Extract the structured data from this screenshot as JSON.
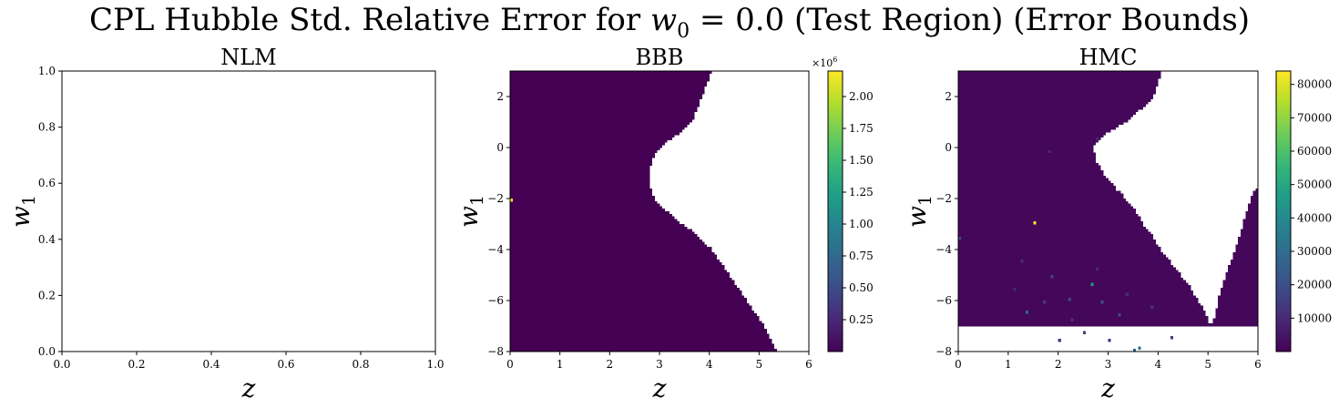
{
  "figure": {
    "title_prefix": "CPL Hubble Std. Relative Error for ",
    "title_math_var": "w",
    "title_math_sub": "0",
    "title_math_rest": " = 0.0",
    "title_suffix": " (Test Region) (Error Bounds)"
  },
  "colors": {
    "viridis_low": "#440154",
    "viridis_high": "#fde725",
    "background": "#ffffff"
  },
  "chart_data": [
    {
      "type": "heatmap",
      "title": "NLM",
      "xlabel": "z",
      "ylabel": "w",
      "ylabel_sub": "1",
      "xlim": [
        0.0,
        1.0
      ],
      "ylim": [
        0.0,
        1.0
      ],
      "xticks": [
        0.0,
        0.2,
        0.4,
        0.6,
        0.8,
        1.0
      ],
      "xtick_labels": [
        "0.0",
        "0.2",
        "0.4",
        "0.6",
        "0.8",
        "1.0"
      ],
      "yticks": [
        0.0,
        0.2,
        0.4,
        0.6,
        0.8,
        1.0
      ],
      "ytick_labels": [
        "0.0",
        "0.2",
        "0.4",
        "0.6",
        "0.8",
        "1.0"
      ],
      "empty": true,
      "colorbar": null
    },
    {
      "type": "heatmap",
      "title": "BBB",
      "xlabel": "z",
      "ylabel": "w",
      "ylabel_sub": "1",
      "xlim": [
        0,
        6
      ],
      "ylim": [
        -8,
        3
      ],
      "xticks": [
        0,
        1,
        2,
        3,
        4,
        5,
        6
      ],
      "xtick_labels": [
        "0",
        "1",
        "2",
        "3",
        "4",
        "5",
        "6"
      ],
      "yticks": [
        2,
        0,
        -2,
        -4,
        -6,
        -8
      ],
      "ytick_labels": [
        "2",
        "0",
        "−2",
        "−4",
        "−6",
        "−8"
      ],
      "grid": {
        "nx": 120,
        "ny": 110
      },
      "valid_region_boundary": {
        "w1": [
          3.0,
          2.0,
          1.0,
          0.5,
          0.0,
          -0.5,
          -1.0,
          -1.5,
          -2.0,
          -2.5,
          -3.0,
          -3.5,
          -4.0,
          -5.0,
          -6.0,
          -7.0,
          -8.0
        ],
        "z_max": [
          4.05,
          3.85,
          3.65,
          3.35,
          3.0,
          2.85,
          2.78,
          2.8,
          2.9,
          3.15,
          3.45,
          3.8,
          4.05,
          4.4,
          4.75,
          5.1,
          5.35
        ]
      },
      "base_value": 0,
      "hotspots": [
        {
          "z": 0.0,
          "w1": -2.1,
          "value": 2150000
        }
      ],
      "colorbar": {
        "min": 0,
        "max": 2200000,
        "offset_label": "×10",
        "offset_exp": "6",
        "ticks": [
          250000,
          500000,
          750000,
          1000000,
          1250000,
          1500000,
          1750000,
          2000000
        ],
        "tick_labels": [
          "0.25",
          "0.50",
          "0.75",
          "1.00",
          "1.25",
          "1.50",
          "1.75",
          "2.00"
        ]
      }
    },
    {
      "type": "heatmap",
      "title": "HMC",
      "xlabel": "z",
      "ylabel": "w",
      "ylabel_sub": "1",
      "xlim": [
        0,
        6
      ],
      "ylim": [
        -8,
        3
      ],
      "xticks": [
        0,
        1,
        2,
        3,
        4,
        5,
        6
      ],
      "xtick_labels": [
        "0",
        "1",
        "2",
        "3",
        "4",
        "5",
        "6"
      ],
      "yticks": [
        2,
        0,
        -2,
        -4,
        -6,
        -8
      ],
      "ytick_labels": [
        "2",
        "0",
        "−2",
        "−4",
        "−6",
        "−8"
      ],
      "grid": {
        "nx": 120,
        "ny": 110
      },
      "left_boundary": {
        "w1": [
          3.0,
          2.5,
          2.0,
          1.5,
          1.0,
          0.5,
          0.0,
          -0.5,
          -1.0,
          -1.5,
          -2.0,
          -2.5,
          -3.0,
          -3.5,
          -4.0,
          -4.5,
          -5.0,
          -5.5,
          -6.0,
          -6.5,
          -6.8,
          -7.0
        ],
        "z_max": [
          4.05,
          4.0,
          3.9,
          3.65,
          3.35,
          2.9,
          2.7,
          2.75,
          2.9,
          3.1,
          3.35,
          3.55,
          3.7,
          3.9,
          4.05,
          4.25,
          4.45,
          4.65,
          4.8,
          4.95,
          5.0,
          5.05
        ]
      },
      "right_boundary": {
        "w1": [
          -7.0,
          -6.8,
          -6.5,
          -6.0,
          -5.0,
          -4.5,
          -4.0,
          -3.0,
          -2.0,
          -1.5
        ],
        "z_min": [
          5.05,
          5.1,
          5.15,
          5.2,
          5.35,
          5.45,
          5.55,
          5.7,
          5.85,
          6.0
        ]
      },
      "base_value": 1500,
      "hotspots": [
        {
          "z": 1.52,
          "w1": -3.0,
          "value": 83000
        },
        {
          "z": 2.67,
          "w1": -5.35,
          "value": 45000
        },
        {
          "z": 1.4,
          "w1": -6.45,
          "value": 30000
        },
        {
          "z": 3.6,
          "w1": -7.85,
          "value": 32000
        },
        {
          "z": 2.9,
          "w1": -6.1,
          "value": 22000
        },
        {
          "z": 1.9,
          "w1": -5.1,
          "value": 18000
        },
        {
          "z": 2.2,
          "w1": -5.9,
          "value": 16000
        },
        {
          "z": 3.2,
          "w1": -6.6,
          "value": 20000
        },
        {
          "z": 2.5,
          "w1": -7.3,
          "value": 15000
        },
        {
          "z": 1.7,
          "w1": -6.1,
          "value": 14000
        },
        {
          "z": 2.0,
          "w1": -7.6,
          "value": 17000
        },
        {
          "z": 3.85,
          "w1": -6.2,
          "value": 12000
        },
        {
          "z": 3.0,
          "w1": -7.55,
          "value": 12000
        },
        {
          "z": 4.3,
          "w1": -7.5,
          "value": 14000
        },
        {
          "z": 0.0,
          "w1": -3.6,
          "value": 18000
        },
        {
          "z": 1.25,
          "w1": -4.4,
          "value": 11000
        },
        {
          "z": 3.5,
          "w1": -7.9,
          "value": 25000
        },
        {
          "z": 1.1,
          "w1": -5.6,
          "value": 10000
        },
        {
          "z": 2.75,
          "w1": -4.7,
          "value": 10000
        },
        {
          "z": 2.3,
          "w1": -6.8,
          "value": 13000
        },
        {
          "z": 3.35,
          "w1": -5.8,
          "value": 11000
        },
        {
          "z": 1.8,
          "w1": -0.2,
          "value": 9000
        },
        {
          "z": 2.8,
          "w1": 0.3,
          "value": 9000
        }
      ],
      "colorbar": {
        "min": 0,
        "max": 84000,
        "offset_label": "",
        "offset_exp": "",
        "ticks": [
          10000,
          20000,
          30000,
          40000,
          50000,
          60000,
          70000,
          80000
        ],
        "tick_labels": [
          "10000",
          "20000",
          "30000",
          "40000",
          "50000",
          "60000",
          "70000",
          "80000"
        ]
      }
    }
  ]
}
